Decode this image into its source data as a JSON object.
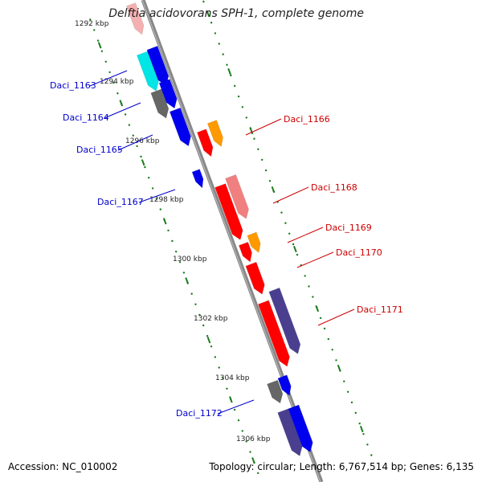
{
  "title": "Delftia acidovorans SPH-1, complete genome",
  "footer": {
    "accession": "Accession: NC_010002",
    "topology": "Topology: circular; Length: 6,767,514 bp; Genes: 6,135"
  },
  "ticks": [
    {
      "label": "1292 kbp"
    },
    {
      "label": "1294 kbp"
    },
    {
      "label": "1296 kbp"
    },
    {
      "label": "1298 kbp"
    },
    {
      "label": "1300 kbp"
    },
    {
      "label": "1302 kbp"
    },
    {
      "label": "1304 kbp"
    },
    {
      "label": "1306 kbp"
    }
  ],
  "colors": {
    "backbone": "#888888",
    "tick": "#1a7a1a",
    "left_label": "#0000cc",
    "right_label": "#cc0000",
    "red": "#ff0000",
    "pink": "#f08080",
    "orange": "#ff9900",
    "blue": "#0000ee",
    "cyan": "#00e5e5",
    "gray": "#666666",
    "purple": "#4a3f8f"
  },
  "genes_left": [
    {
      "label": "Daci_1163"
    },
    {
      "label": "Daci_1164"
    },
    {
      "label": "Daci_1165"
    },
    {
      "label": "Daci_1167"
    },
    {
      "label": "Daci_1172"
    }
  ],
  "genes_right": [
    {
      "label": "Daci_1166"
    },
    {
      "label": "Daci_1168"
    },
    {
      "label": "Daci_1169"
    },
    {
      "label": "Daci_1170"
    },
    {
      "label": "Daci_1171"
    }
  ]
}
